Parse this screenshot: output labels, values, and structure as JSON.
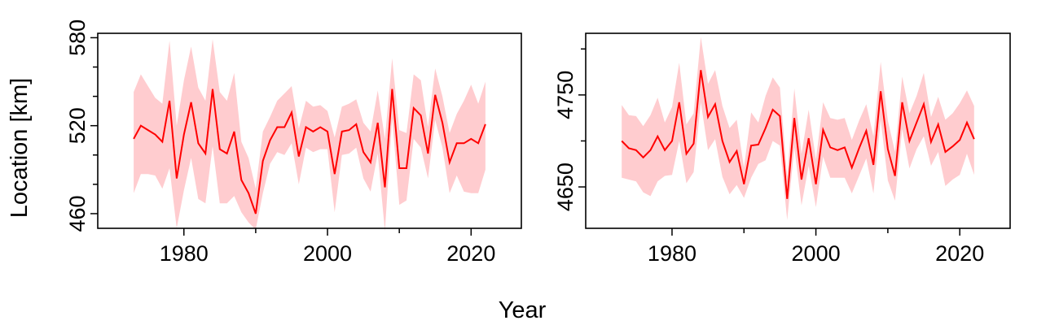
{
  "figure": {
    "xlabel": "Year",
    "ylabel": "Location [km]",
    "line_color": "#ff0000",
    "band_color": "#ffcccf"
  },
  "chart_data": [
    {
      "type": "line",
      "xlim": [
        1968,
        2027
      ],
      "ylim": [
        450,
        583
      ],
      "xticks_major": [
        1980,
        2000,
        2020
      ],
      "xticks_minor": [
        1990,
        2010
      ],
      "yticks_major": [
        460,
        520,
        580
      ],
      "yticks_minor": [
        480,
        500,
        540,
        560
      ],
      "ytick_labels": [
        "460",
        "520",
        "580"
      ],
      "x": [
        1973,
        1974,
        1975,
        1976,
        1977,
        1978,
        1979,
        1980,
        1981,
        1982,
        1983,
        1984,
        1985,
        1986,
        1987,
        1988,
        1989,
        1990,
        1991,
        1992,
        1993,
        1994,
        1995,
        1996,
        1997,
        1998,
        1999,
        2000,
        2001,
        2002,
        2003,
        2004,
        2005,
        2006,
        2007,
        2008,
        2009,
        2010,
        2011,
        2012,
        2013,
        2014,
        2015,
        2016,
        2017,
        2018,
        2019,
        2020,
        2021,
        2022
      ],
      "series": [
        {
          "values": [
            511,
            520,
            517,
            514,
            509,
            537,
            484,
            514,
            536,
            508,
            501,
            545,
            504,
            501,
            516,
            483,
            474,
            460,
            496,
            510,
            519,
            519,
            529,
            499,
            519,
            516,
            519,
            516,
            487,
            516,
            517,
            521,
            502,
            495,
            522,
            478,
            545,
            491,
            491,
            532,
            527,
            501,
            541,
            522,
            495,
            508,
            508,
            511,
            508,
            521
          ],
          "lower": [
            474,
            487,
            487,
            486,
            477,
            491,
            450,
            476,
            498,
            470,
            467,
            506,
            467,
            467,
            472,
            461,
            454,
            449,
            474,
            494,
            502,
            500,
            508,
            480,
            505,
            502,
            504,
            504,
            461,
            500,
            501,
            505,
            484,
            475,
            501,
            448,
            525,
            466,
            469,
            511,
            505,
            484,
            524,
            505,
            474,
            486,
            475,
            474,
            474,
            490
          ],
          "upper": [
            543,
            555,
            547,
            539,
            535,
            578,
            520,
            551,
            574,
            546,
            537,
            579,
            543,
            537,
            556,
            509,
            498,
            477,
            516,
            526,
            537,
            542,
            547,
            518,
            537,
            533,
            534,
            530,
            512,
            533,
            535,
            538,
            522,
            516,
            544,
            511,
            566,
            517,
            515,
            555,
            551,
            519,
            559,
            540,
            515,
            528,
            537,
            548,
            535,
            550
          ]
        }
      ]
    },
    {
      "type": "line",
      "xlim": [
        1968,
        2027
      ],
      "ylim": [
        4605,
        4817
      ],
      "xticks_major": [
        1980,
        2000,
        2020
      ],
      "xticks_minor": [
        1990,
        2010
      ],
      "yticks_major": [
        4650,
        4750
      ],
      "yticks_minor": [
        4700,
        4800
      ],
      "ytick_labels": [
        "4650",
        "4750"
      ],
      "x": [
        1973,
        1974,
        1975,
        1976,
        1977,
        1978,
        1979,
        1980,
        1981,
        1982,
        1983,
        1984,
        1985,
        1986,
        1987,
        1988,
        1989,
        1990,
        1991,
        1992,
        1993,
        1994,
        1995,
        1996,
        1997,
        1998,
        1999,
        2000,
        2001,
        2002,
        2003,
        2004,
        2005,
        2006,
        2007,
        2008,
        2009,
        2010,
        2011,
        2012,
        2013,
        2014,
        2015,
        2016,
        2017,
        2018,
        2019,
        2020,
        2021,
        2022
      ],
      "series": [
        {
          "values": [
            4700,
            4692,
            4690,
            4682,
            4690,
            4705,
            4690,
            4700,
            4742,
            4686,
            4697,
            4777,
            4726,
            4740,
            4700,
            4677,
            4689,
            4653,
            4695,
            4696,
            4714,
            4734,
            4727,
            4637,
            4725,
            4658,
            4703,
            4653,
            4712,
            4693,
            4690,
            4693,
            4671,
            4692,
            4711,
            4674,
            4754,
            4691,
            4662,
            4742,
            4700,
            4720,
            4740,
            4699,
            4718,
            4688,
            4694,
            4701,
            4720,
            4702
          ],
          "lower": [
            4660,
            4658,
            4656,
            4644,
            4640,
            4656,
            4662,
            4663,
            4700,
            4654,
            4666,
            4742,
            4690,
            4702,
            4661,
            4642,
            4652,
            4638,
            4660,
            4675,
            4679,
            4700,
            4695,
            4614,
            4693,
            4630,
            4673,
            4628,
            4683,
            4660,
            4660,
            4660,
            4643,
            4662,
            4681,
            4643,
            4723,
            4657,
            4635,
            4713,
            4670,
            4691,
            4705,
            4673,
            4688,
            4651,
            4658,
            4663,
            4686,
            4663
          ],
          "upper": [
            4739,
            4728,
            4727,
            4716,
            4728,
            4747,
            4720,
            4737,
            4785,
            4718,
            4730,
            4813,
            4762,
            4777,
            4738,
            4714,
            4723,
            4671,
            4731,
            4720,
            4749,
            4769,
            4758,
            4661,
            4757,
            4686,
            4734,
            4680,
            4742,
            4725,
            4723,
            4725,
            4701,
            4722,
            4740,
            4705,
            4786,
            4722,
            4688,
            4770,
            4730,
            4749,
            4774,
            4726,
            4748,
            4723,
            4730,
            4741,
            4755,
            4738
          ]
        }
      ]
    }
  ]
}
